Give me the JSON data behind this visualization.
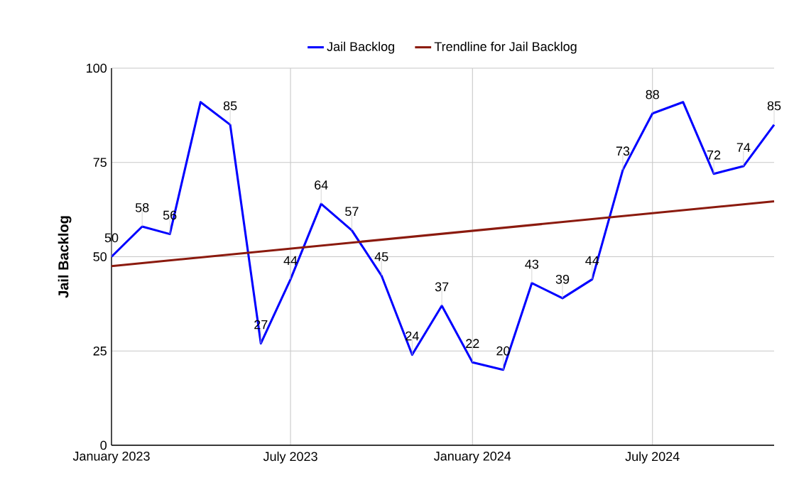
{
  "chart_data": {
    "type": "line",
    "ylabel": "Jail Backlog",
    "x": [
      "2023-01",
      "2023-02",
      "2023-03",
      "2023-04",
      "2023-05",
      "2023-06",
      "2023-07",
      "2023-08",
      "2023-09",
      "2023-10",
      "2023-11",
      "2023-12",
      "2024-01",
      "2024-02",
      "2024-03",
      "2024-04",
      "2024-05",
      "2024-06",
      "2024-07",
      "2024-08",
      "2024-09",
      "2024-10",
      "2024-11"
    ],
    "series": [
      {
        "name": "Jail Backlog",
        "color": "#0000ff",
        "values": [
          50,
          58,
          56,
          91,
          85,
          27,
          44,
          64,
          57,
          45,
          24,
          37,
          22,
          20,
          43,
          39,
          44,
          73,
          88,
          91,
          72,
          74,
          85
        ],
        "value_labels": [
          "50",
          "58",
          "56",
          null,
          "85",
          "27",
          "44",
          "64",
          "57",
          "45",
          "24",
          "37",
          "22",
          "20",
          "43",
          "39",
          "44",
          "73",
          "88",
          null,
          "72",
          "74",
          "85"
        ]
      },
      {
        "name": "Trendline for Jail Backlog",
        "type": "line",
        "color": "#8b1a0e",
        "x": [
          "2023-01",
          "2024-11"
        ],
        "values": [
          47.5,
          64.7
        ]
      }
    ],
    "xlim": [
      "2023-01",
      "2024-11"
    ],
    "xticks": [
      {
        "value": "2023-01",
        "label": "January 2023"
      },
      {
        "value": "2023-07",
        "label": "July 2023"
      },
      {
        "value": "2024-01",
        "label": "January 2024"
      },
      {
        "value": "2024-07",
        "label": "July 2024"
      }
    ],
    "ylim": [
      0,
      100
    ],
    "yticks": [
      0,
      25,
      50,
      75,
      100
    ],
    "grid": true,
    "legend": "top"
  }
}
